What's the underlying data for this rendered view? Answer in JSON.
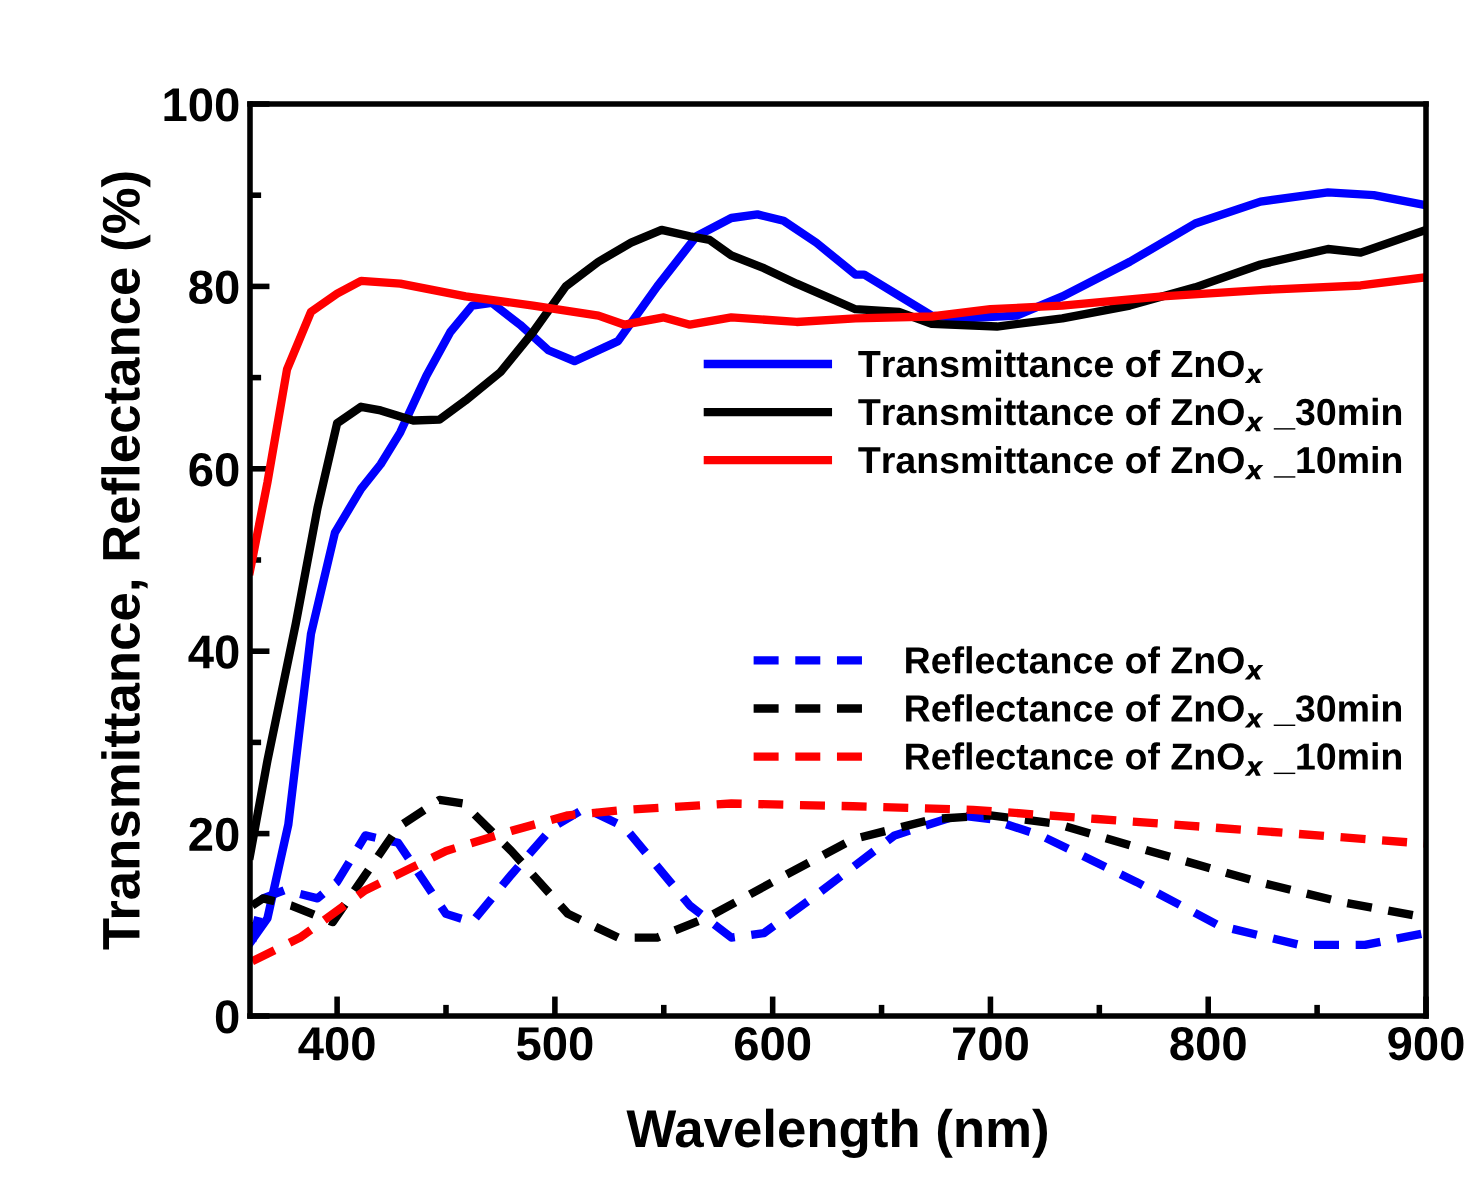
{
  "chart_data": {
    "type": "line",
    "xlabel": "Wavelength (nm)",
    "ylabel": "Transmittance, Reflectance (%)",
    "xlim": [
      360,
      900
    ],
    "xticks": [
      400,
      500,
      600,
      700,
      800,
      900
    ],
    "ylim": [
      0,
      100
    ],
    "yticks": [
      0,
      20,
      40,
      60,
      80,
      100
    ],
    "grid": false,
    "legend": "right",
    "series": [
      {
        "name": "Transmittance of ZnO$_{x}$",
        "color": "#0000ff",
        "line_style": "solid",
        "x": [
          360,
          368,
          377.6,
          388,
          399,
          411,
          420,
          429,
          441,
          452,
          462,
          471,
          484,
          497,
          509,
          529,
          547,
          565,
          581,
          593,
          605,
          620,
          638,
          642,
          673,
          688,
          712,
          733,
          764,
          794,
          824,
          855,
          876,
          900
        ],
        "values": [
          8,
          10.7,
          21,
          41.9,
          53,
          57.8,
          60.5,
          64,
          70.2,
          75,
          77.9,
          78.2,
          75.8,
          73,
          71.8,
          74,
          80,
          85.5,
          87.5,
          87.9,
          87.2,
          84.8,
          81.3,
          81.3,
          76.8,
          76.5,
          76.8,
          78.9,
          82.7,
          86.9,
          89.3,
          90.3,
          90,
          88.9
        ]
      },
      {
        "name": "Transmittance of ZnO$_{x}$ _30min",
        "color": "#000000",
        "line_style": "solid",
        "x": [
          360,
          368,
          381,
          391,
          400,
          411,
          420,
          435,
          447,
          459,
          475,
          490,
          505,
          520,
          535,
          549,
          562,
          571,
          581,
          596,
          611,
          638,
          658,
          673,
          703,
          733,
          764,
          794,
          824,
          855,
          870,
          900
        ],
        "values": [
          17.6,
          28,
          43,
          55.7,
          65,
          66.8,
          66.4,
          65.3,
          65.4,
          67.5,
          70.6,
          75,
          80,
          82.7,
          84.8,
          86.2,
          85.5,
          85.1,
          83.4,
          82,
          80.3,
          77.5,
          77.2,
          75.9,
          75.6,
          76.5,
          77.9,
          79.9,
          82.4,
          84.1,
          83.7,
          86.2
        ]
      },
      {
        "name": "Transmittance of ZnO$_{x}$ _10min",
        "color": "#ff0000",
        "line_style": "solid",
        "x": [
          360,
          368,
          377,
          388,
          400,
          411,
          429,
          459,
          490,
          520,
          532,
          550,
          562,
          581,
          611,
          638,
          673,
          700,
          733,
          779,
          824,
          870,
          900
        ],
        "values": [
          48.8,
          58.5,
          70.9,
          77.2,
          79.2,
          80.6,
          80.3,
          78.9,
          77.9,
          76.8,
          75.8,
          76.6,
          75.8,
          76.6,
          76.1,
          76.5,
          76.7,
          77.5,
          77.9,
          78.9,
          79.6,
          80.1,
          81
        ]
      },
      {
        "name": "Reflectance of ZnO$_{x}$",
        "color": "#0000ff",
        "line_style": "dashed",
        "x": [
          361,
          366,
          376,
          391,
          400,
          413,
          428,
          450,
          462,
          480,
          499,
          514,
          532,
          562,
          581,
          596,
          618,
          656,
          685,
          700,
          723,
          767,
          805,
          842,
          872,
          900
        ],
        "values": [
          8.2,
          12.9,
          13.8,
          12.9,
          14.7,
          19.8,
          19,
          11.2,
          10.3,
          15.5,
          20.7,
          22.8,
          20.7,
          12.1,
          8.6,
          9.1,
          12.9,
          19.8,
          22,
          21.6,
          19.8,
          14.7,
          9.9,
          7.8,
          7.8,
          9.1
        ]
      },
      {
        "name": "Reflectance of ZnO$_{x}$ _30min",
        "color": "#000000",
        "line_style": "dashed",
        "x": [
          361,
          366,
          379,
          398,
          413,
          428,
          447,
          458,
          480,
          506,
          529,
          547,
          570,
          600,
          637,
          674,
          700,
          730,
          767,
          823,
          861,
          900
        ],
        "values": [
          12.1,
          12.9,
          12.1,
          10.3,
          15.5,
          20.7,
          23.7,
          23.3,
          18.1,
          11.2,
          8.6,
          8.6,
          10.8,
          14.7,
          19.4,
          21.6,
          22,
          21.1,
          18.5,
          14.7,
          12.5,
          10.8
        ]
      },
      {
        "name": "Reflectance of ZnO$_{x}$ _10min",
        "color": "#ff0000",
        "line_style": "dashed",
        "x": [
          361,
          383,
          413,
          450,
          480,
          506,
          532,
          581,
          637,
          692,
          749,
          823,
          894,
          900
        ],
        "values": [
          6,
          8.6,
          13.8,
          18.1,
          20.3,
          22,
          22.6,
          23.3,
          23,
          22.6,
          21.6,
          20.3,
          19,
          18.9
        ]
      }
    ]
  }
}
